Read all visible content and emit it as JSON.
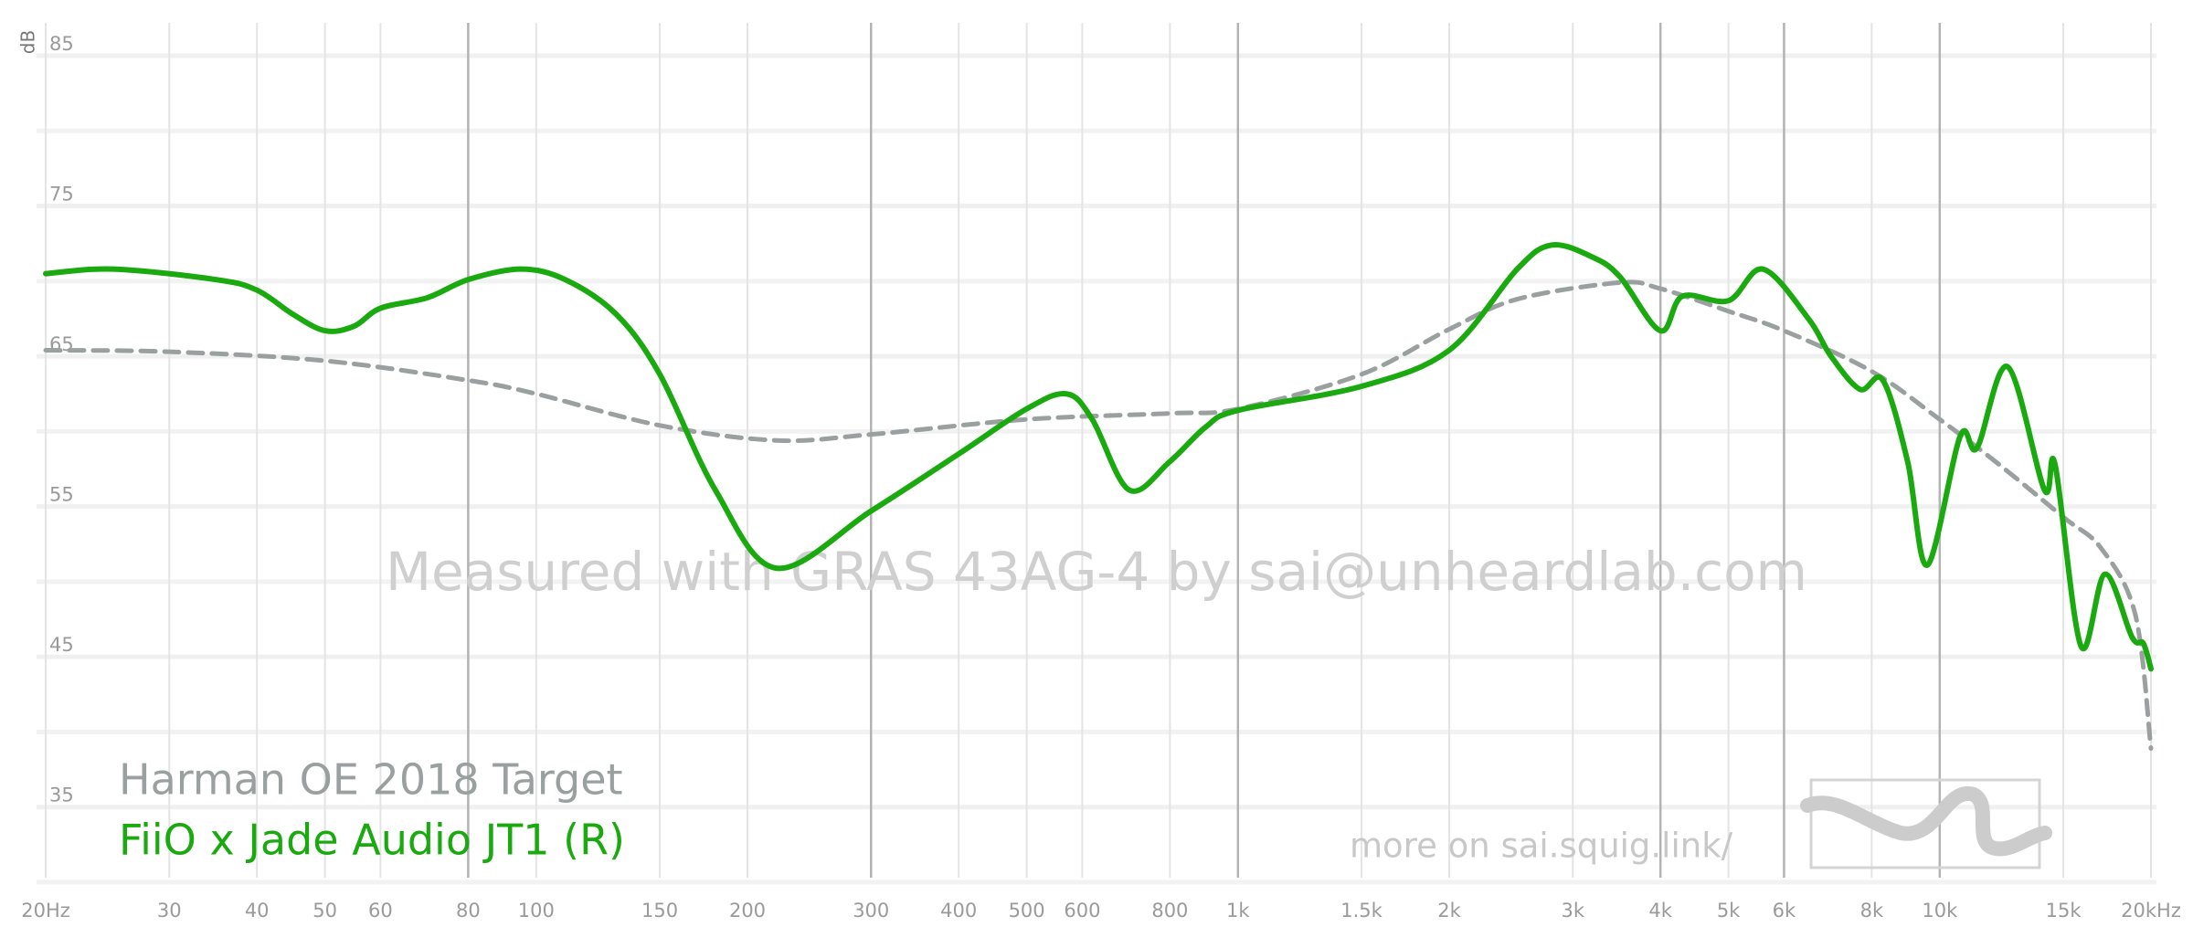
{
  "chart_data": {
    "type": "line",
    "x_scale": "log",
    "y_label": "dB",
    "watermark": "Measured with GRAS 43AG-4 by sai@unheardlab.com",
    "footer_link": "more on sai.squig.link/",
    "xlim": [
      20,
      20000
    ],
    "ylim": [
      30,
      85
    ],
    "yticks": [
      35,
      45,
      55,
      65,
      75,
      85
    ],
    "y_grid": [
      30,
      40,
      50,
      60,
      70,
      80
    ],
    "xticks": [
      {
        "value": 20,
        "label": "20Hz"
      },
      30,
      40,
      50,
      60,
      80,
      100,
      150,
      200,
      300,
      400,
      500,
      600,
      800,
      {
        "value": 1000,
        "label": "1k"
      },
      {
        "value": 1500,
        "label": "1.5k"
      },
      {
        "value": 2000,
        "label": "2k"
      },
      {
        "value": 3000,
        "label": "3k"
      },
      {
        "value": 4000,
        "label": "4k"
      },
      {
        "value": 5000,
        "label": "5k"
      },
      {
        "value": 6000,
        "label": "6k"
      },
      {
        "value": 8000,
        "label": "8k"
      },
      {
        "value": 10000,
        "label": "10k"
      },
      {
        "value": 15000,
        "label": "15k"
      },
      {
        "value": 20000,
        "label": "20kHz"
      }
    ],
    "emphasized_xticks": [
      80,
      300,
      1000,
      4000,
      6000,
      10000
    ],
    "series": [
      {
        "name": "Harman OE 2018 Target",
        "color": "#9a9f9f",
        "dashed": true,
        "x": [
          20,
          30,
          50,
          80,
          100,
          150,
          220,
          300,
          500,
          800,
          1000,
          1500,
          2000,
          2500,
          3500,
          4000,
          5000,
          6000,
          8000,
          10000,
          12000,
          15000,
          17000,
          19000,
          20000
        ],
        "values": [
          65.4,
          65.3,
          64.7,
          63.4,
          62.5,
          60.4,
          59.4,
          59.8,
          60.8,
          61.2,
          61.5,
          63.8,
          66.8,
          68.8,
          69.9,
          69.5,
          68.0,
          66.7,
          64.0,
          60.8,
          58.0,
          54.3,
          52.2,
          47.8,
          38.9
        ]
      },
      {
        "name": "FiiO x Jade Audio JT1 (R)",
        "color": "#1aaa10",
        "dashed": false,
        "x": [
          20,
          25,
          35,
          40,
          45,
          50,
          55,
          60,
          70,
          80,
          95,
          110,
          130,
          150,
          180,
          220,
          300,
          400,
          500,
          570,
          620,
          700,
          800,
          900,
          1000,
          1500,
          2000,
          2500,
          2800,
          3200,
          3500,
          4000,
          4300,
          5000,
          5600,
          6500,
          7000,
          7700,
          8300,
          9000,
          9600,
          10700,
          11300,
          12500,
          14100,
          14600,
          15900,
          17200,
          18800,
          19500,
          20000
        ],
        "values": [
          70.5,
          70.8,
          70.1,
          69.4,
          67.8,
          66.7,
          67.0,
          68.2,
          68.9,
          70.1,
          70.8,
          70.1,
          67.8,
          63.8,
          56.1,
          50.9,
          54.7,
          58.5,
          61.5,
          62.5,
          60.8,
          56.1,
          58.0,
          60.3,
          61.4,
          63.0,
          65.4,
          70.8,
          72.4,
          71.6,
          70.3,
          66.7,
          69.0,
          68.7,
          70.8,
          67.5,
          65.0,
          62.8,
          63.4,
          58.0,
          51.1,
          59.7,
          58.9,
          64.3,
          56.1,
          57.8,
          45.7,
          50.5,
          46.3,
          45.9,
          44.2
        ]
      }
    ]
  }
}
